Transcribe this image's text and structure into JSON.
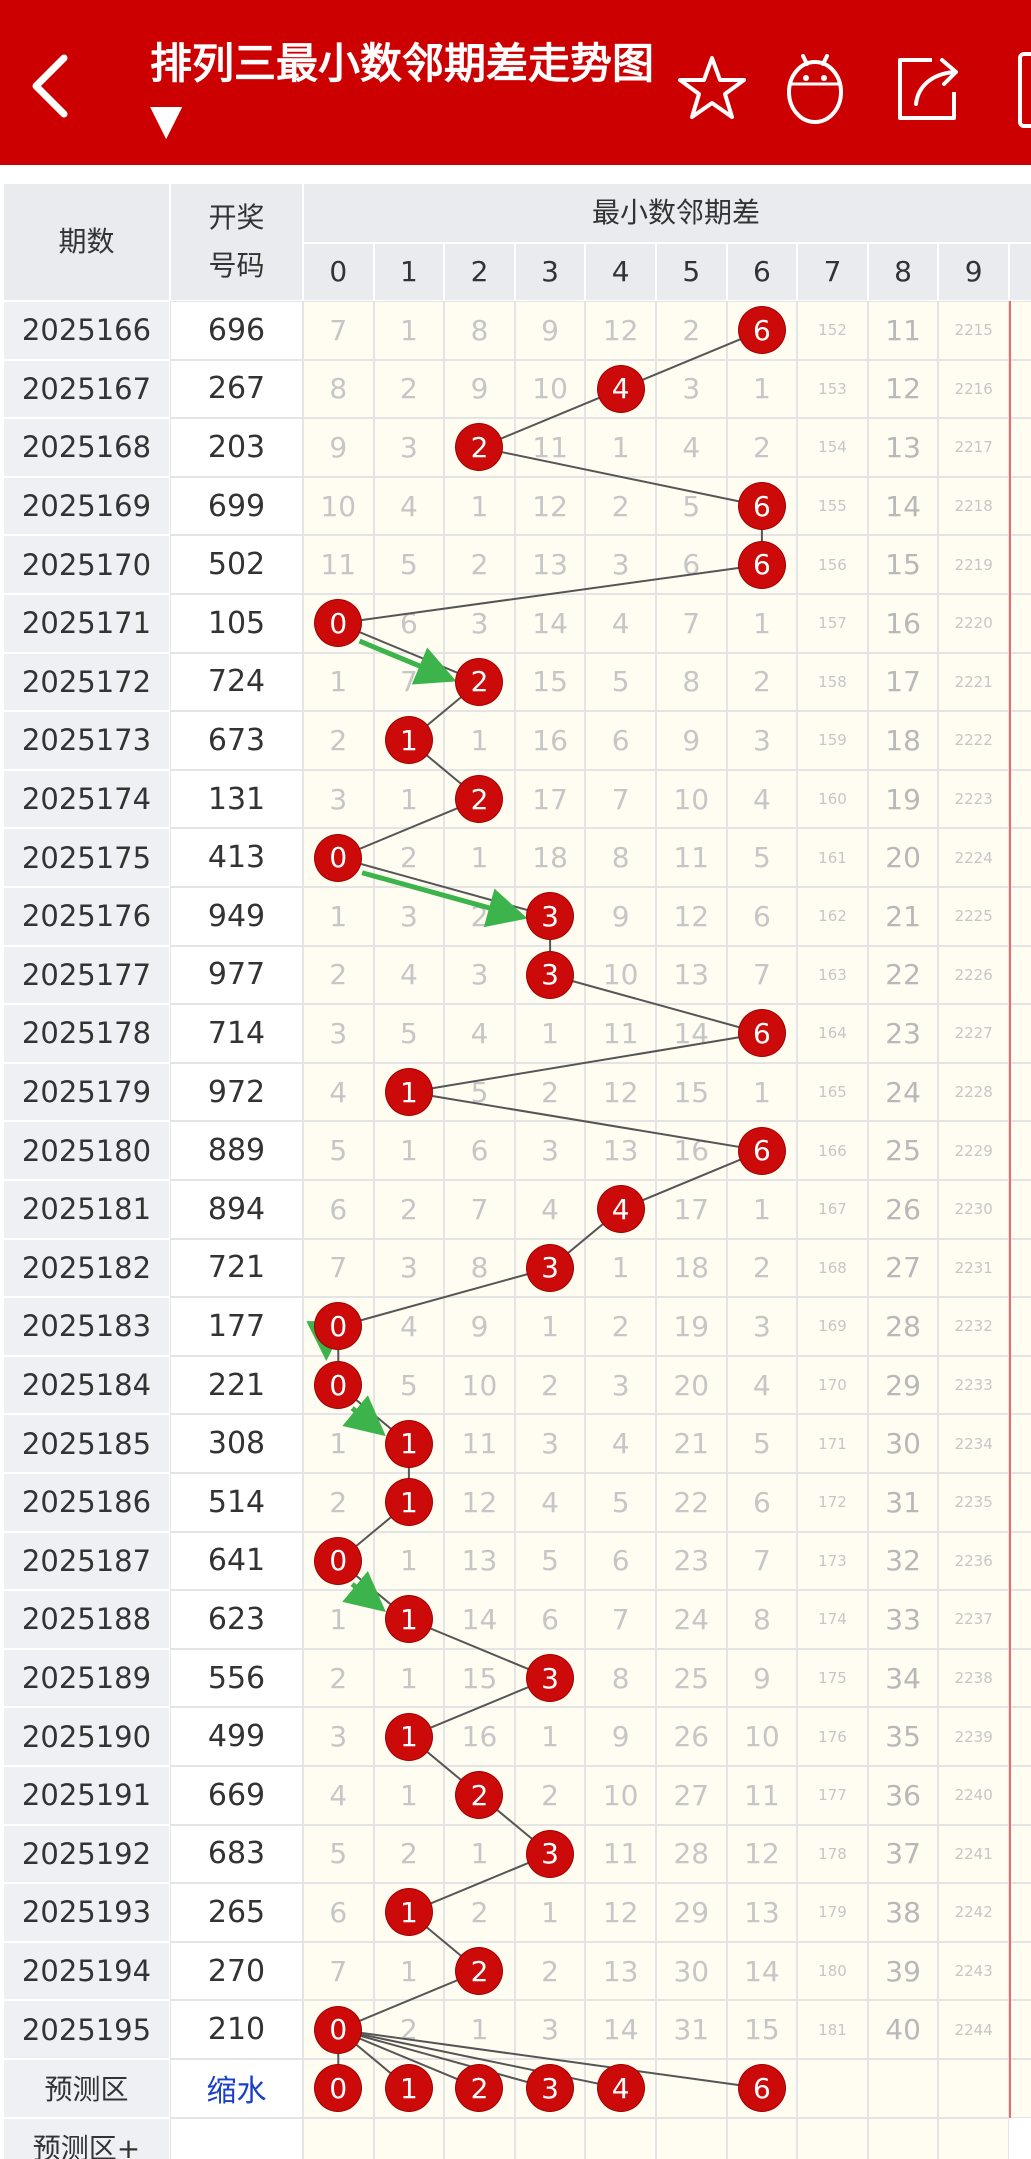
{
  "header": {
    "title": "排列三最小数邻期差走势图 ▼",
    "back_icon": "chevron-left-icon",
    "icons": [
      "star-icon",
      "robot-icon",
      "share-icon"
    ]
  },
  "table": {
    "col_period": "期数",
    "col_number": "开奖号码",
    "col_group": "最小数邻期差",
    "columns": [
      "0",
      "1",
      "2",
      "3",
      "4",
      "5",
      "6",
      "7",
      "8",
      "9"
    ],
    "rows": [
      {
        "period": "2025166",
        "number": "696",
        "vals": [
          "7",
          "1",
          "8",
          "9",
          "12",
          "2",
          "6",
          "152",
          "11",
          "2215"
        ],
        "hit": 6
      },
      {
        "period": "2025167",
        "number": "267",
        "vals": [
          "8",
          "2",
          "9",
          "10",
          "4",
          "3",
          "1",
          "153",
          "12",
          "2216"
        ],
        "hit": 4
      },
      {
        "period": "2025168",
        "number": "203",
        "vals": [
          "9",
          "3",
          "2",
          "11",
          "1",
          "4",
          "2",
          "154",
          "13",
          "2217"
        ],
        "hit": 2
      },
      {
        "period": "2025169",
        "number": "699",
        "vals": [
          "10",
          "4",
          "1",
          "12",
          "2",
          "5",
          "6",
          "155",
          "14",
          "2218"
        ],
        "hit": 6
      },
      {
        "period": "2025170",
        "number": "502",
        "vals": [
          "11",
          "5",
          "2",
          "13",
          "3",
          "6",
          "6",
          "156",
          "15",
          "2219"
        ],
        "hit": 6
      },
      {
        "period": "2025171",
        "number": "105",
        "vals": [
          "0",
          "6",
          "3",
          "14",
          "4",
          "7",
          "1",
          "157",
          "16",
          "2220"
        ],
        "hit": 0
      },
      {
        "period": "2025172",
        "number": "724",
        "vals": [
          "1",
          "7",
          "2",
          "15",
          "5",
          "8",
          "2",
          "158",
          "17",
          "2221"
        ],
        "hit": 2
      },
      {
        "period": "2025173",
        "number": "673",
        "vals": [
          "2",
          "1",
          "1",
          "16",
          "6",
          "9",
          "3",
          "159",
          "18",
          "2222"
        ],
        "hit": 1
      },
      {
        "period": "2025174",
        "number": "131",
        "vals": [
          "3",
          "1",
          "2",
          "17",
          "7",
          "10",
          "4",
          "160",
          "19",
          "2223"
        ],
        "hit": 2
      },
      {
        "period": "2025175",
        "number": "413",
        "vals": [
          "0",
          "2",
          "1",
          "18",
          "8",
          "11",
          "5",
          "161",
          "20",
          "2224"
        ],
        "hit": 0
      },
      {
        "period": "2025176",
        "number": "949",
        "vals": [
          "1",
          "3",
          "2",
          "3",
          "9",
          "12",
          "6",
          "162",
          "21",
          "2225"
        ],
        "hit": 3
      },
      {
        "period": "2025177",
        "number": "977",
        "vals": [
          "2",
          "4",
          "3",
          "3",
          "10",
          "13",
          "7",
          "163",
          "22",
          "2226"
        ],
        "hit": 3
      },
      {
        "period": "2025178",
        "number": "714",
        "vals": [
          "3",
          "5",
          "4",
          "1",
          "11",
          "14",
          "6",
          "164",
          "23",
          "2227"
        ],
        "hit": 6
      },
      {
        "period": "2025179",
        "number": "972",
        "vals": [
          "4",
          "1",
          "5",
          "2",
          "12",
          "15",
          "1",
          "165",
          "24",
          "2228"
        ],
        "hit": 1
      },
      {
        "period": "2025180",
        "number": "889",
        "vals": [
          "5",
          "1",
          "6",
          "3",
          "13",
          "16",
          "6",
          "166",
          "25",
          "2229"
        ],
        "hit": 6
      },
      {
        "period": "2025181",
        "number": "894",
        "vals": [
          "6",
          "2",
          "7",
          "4",
          "4",
          "17",
          "1",
          "167",
          "26",
          "2230"
        ],
        "hit": 4
      },
      {
        "period": "2025182",
        "number": "721",
        "vals": [
          "7",
          "3",
          "8",
          "3",
          "1",
          "18",
          "2",
          "168",
          "27",
          "2231"
        ],
        "hit": 3
      },
      {
        "period": "2025183",
        "number": "177",
        "vals": [
          "0",
          "4",
          "9",
          "1",
          "2",
          "19",
          "3",
          "169",
          "28",
          "2232"
        ],
        "hit": 0
      },
      {
        "period": "2025184",
        "number": "221",
        "vals": [
          "0",
          "5",
          "10",
          "2",
          "3",
          "20",
          "4",
          "170",
          "29",
          "2233"
        ],
        "hit": 0
      },
      {
        "period": "2025185",
        "number": "308",
        "vals": [
          "1",
          "1",
          "11",
          "3",
          "4",
          "21",
          "5",
          "171",
          "30",
          "2234"
        ],
        "hit": 1
      },
      {
        "period": "2025186",
        "number": "514",
        "vals": [
          "2",
          "1",
          "12",
          "4",
          "5",
          "22",
          "6",
          "172",
          "31",
          "2235"
        ],
        "hit": 1
      },
      {
        "period": "2025187",
        "number": "641",
        "vals": [
          "0",
          "1",
          "13",
          "5",
          "6",
          "23",
          "7",
          "173",
          "32",
          "2236"
        ],
        "hit": 0
      },
      {
        "period": "2025188",
        "number": "623",
        "vals": [
          "1",
          "1",
          "14",
          "6",
          "7",
          "24",
          "8",
          "174",
          "33",
          "2237"
        ],
        "hit": 1
      },
      {
        "period": "2025189",
        "number": "556",
        "vals": [
          "2",
          "1",
          "15",
          "3",
          "8",
          "25",
          "9",
          "175",
          "34",
          "2238"
        ],
        "hit": 3
      },
      {
        "period": "2025190",
        "number": "499",
        "vals": [
          "3",
          "1",
          "16",
          "1",
          "9",
          "26",
          "10",
          "176",
          "35",
          "2239"
        ],
        "hit": 1
      },
      {
        "period": "2025191",
        "number": "669",
        "vals": [
          "4",
          "1",
          "2",
          "2",
          "10",
          "27",
          "11",
          "177",
          "36",
          "2240"
        ],
        "hit": 2
      },
      {
        "period": "2025192",
        "number": "683",
        "vals": [
          "5",
          "2",
          "1",
          "3",
          "11",
          "28",
          "12",
          "178",
          "37",
          "2241"
        ],
        "hit": 3
      },
      {
        "period": "2025193",
        "number": "265",
        "vals": [
          "6",
          "1",
          "2",
          "1",
          "12",
          "29",
          "13",
          "179",
          "38",
          "2242"
        ],
        "hit": 1
      },
      {
        "period": "2025194",
        "number": "270",
        "vals": [
          "7",
          "1",
          "2",
          "2",
          "13",
          "30",
          "14",
          "180",
          "39",
          "2243"
        ],
        "hit": 2
      },
      {
        "period": "2025195",
        "number": "210",
        "vals": [
          "0",
          "2",
          "1",
          "3",
          "14",
          "31",
          "15",
          "181",
          "40",
          "2244"
        ],
        "hit": 0
      }
    ],
    "prediction": {
      "label": "预测区",
      "action": "缩水",
      "balls": [
        "0",
        "1",
        "2",
        "3",
        "4",
        "6"
      ]
    },
    "prediction_plus": {
      "label": "预测区+"
    }
  },
  "colors": {
    "header_bg": "#cc0000",
    "ball": "#cc0a0a",
    "arrow": "#3cb44b",
    "line": "#555555"
  }
}
